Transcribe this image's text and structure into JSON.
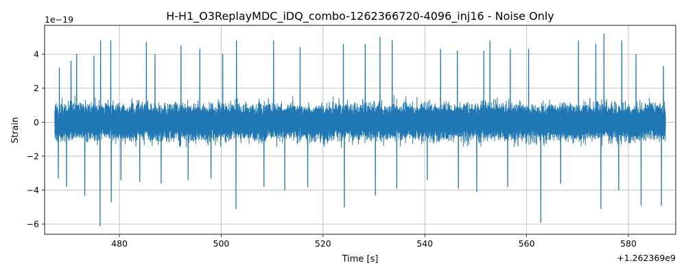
{
  "chart_data": {
    "type": "line",
    "title": "H-H1_O3ReplayMDC_iDQ_combo-1262366720-4096_inj16 - Noise Only",
    "xlabel": "Time [s]",
    "ylabel": "Strain",
    "x_offset_label": "+1.262369e9",
    "y_scale_label": "1e−19",
    "xlim": [
      465.3,
      589.3
    ],
    "ylim": [
      -6.6,
      5.7
    ],
    "x_ticks": [
      480,
      500,
      520,
      540,
      560,
      580
    ],
    "x_tick_labels": [
      "480",
      "500",
      "520",
      "540",
      "560",
      "580"
    ],
    "y_ticks": [
      -6,
      -4,
      -2,
      0,
      2,
      4
    ],
    "y_tick_labels": [
      "−6",
      "−4",
      "−2",
      "0",
      "2",
      "4"
    ],
    "grid": true,
    "series": [
      {
        "color": "#1f77b4",
        "x_start": 467.3,
        "x_end": 587.3,
        "typical_abs_max": 2.2,
        "peaks": [
          {
            "x": 468.2,
            "y": 3.2
          },
          {
            "x": 470.5,
            "y": 3.6
          },
          {
            "x": 471.6,
            "y": 4.0
          },
          {
            "x": 475.0,
            "y": 3.9
          },
          {
            "x": 476.3,
            "y": 4.8
          },
          {
            "x": 478.3,
            "y": 4.8
          },
          {
            "x": 485.3,
            "y": 4.7
          },
          {
            "x": 487.0,
            "y": 4.0
          },
          {
            "x": 492.1,
            "y": 4.5
          },
          {
            "x": 495.8,
            "y": 4.3
          },
          {
            "x": 500.3,
            "y": 4.0
          },
          {
            "x": 503.0,
            "y": 4.8
          },
          {
            "x": 510.3,
            "y": 4.8
          },
          {
            "x": 515.5,
            "y": 4.4
          },
          {
            "x": 517.0,
            "y": 4.2
          },
          {
            "x": 524.0,
            "y": 4.6
          },
          {
            "x": 528.3,
            "y": 4.6
          },
          {
            "x": 531.2,
            "y": 5.0
          },
          {
            "x": 533.6,
            "y": 4.8
          },
          {
            "x": 543.1,
            "y": 4.3
          },
          {
            "x": 546.4,
            "y": 4.2
          },
          {
            "x": 551.6,
            "y": 4.2
          },
          {
            "x": 552.8,
            "y": 4.8
          },
          {
            "x": 556.8,
            "y": 4.3
          },
          {
            "x": 560.4,
            "y": 4.3
          },
          {
            "x": 570.2,
            "y": 4.8
          },
          {
            "x": 573.6,
            "y": 4.6
          },
          {
            "x": 575.2,
            "y": 5.2
          },
          {
            "x": 578.7,
            "y": 4.8
          },
          {
            "x": 581.5,
            "y": 4.0
          },
          {
            "x": 586.9,
            "y": 3.3
          }
        ],
        "troughs": [
          {
            "x": 468.0,
            "y": -3.3
          },
          {
            "x": 469.6,
            "y": -3.8
          },
          {
            "x": 473.2,
            "y": -4.3
          },
          {
            "x": 476.2,
            "y": -6.1
          },
          {
            "x": 478.4,
            "y": -4.7
          },
          {
            "x": 480.3,
            "y": -3.4
          },
          {
            "x": 484.0,
            "y": -3.5
          },
          {
            "x": 488.2,
            "y": -3.6
          },
          {
            "x": 493.5,
            "y": -3.4
          },
          {
            "x": 498.0,
            "y": -3.3
          },
          {
            "x": 502.9,
            "y": -5.1
          },
          {
            "x": 508.4,
            "y": -3.8
          },
          {
            "x": 512.5,
            "y": -4.0
          },
          {
            "x": 517.0,
            "y": -3.8
          },
          {
            "x": 524.2,
            "y": -5.0
          },
          {
            "x": 530.3,
            "y": -4.3
          },
          {
            "x": 534.5,
            "y": -3.9
          },
          {
            "x": 540.5,
            "y": -3.4
          },
          {
            "x": 546.6,
            "y": -3.9
          },
          {
            "x": 550.2,
            "y": -4.1
          },
          {
            "x": 556.3,
            "y": -3.8
          },
          {
            "x": 562.8,
            "y": -5.9
          },
          {
            "x": 566.7,
            "y": -3.6
          },
          {
            "x": 574.6,
            "y": -5.1
          },
          {
            "x": 578.1,
            "y": -4.0
          },
          {
            "x": 582.5,
            "y": -4.9
          },
          {
            "x": 586.5,
            "y": -4.9
          }
        ]
      }
    ]
  }
}
